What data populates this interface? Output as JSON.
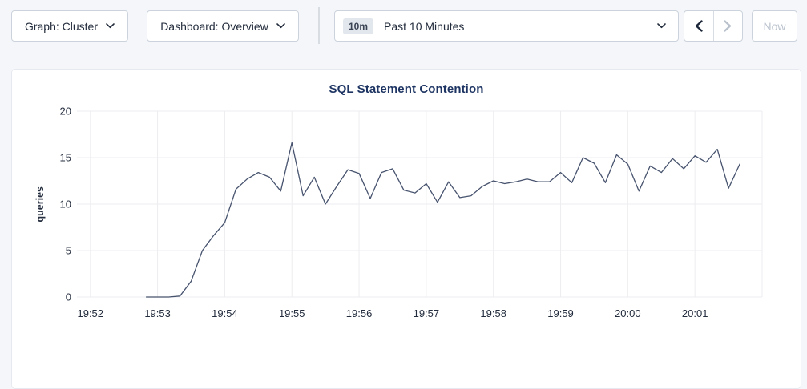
{
  "toolbar": {
    "graph_dropdown": {
      "label": "Graph: Cluster"
    },
    "dashboard_dropdown": {
      "label": "Dashboard: Overview"
    },
    "time_range": {
      "badge": "10m",
      "label": "Past 10 Minutes"
    },
    "now_button": {
      "label": "Now"
    },
    "icons": {
      "graph_dropdown": "chevron-down",
      "dashboard_dropdown": "chevron-down",
      "time_range": "chevron-down",
      "prev": "chevron-left",
      "next": "chevron-right"
    },
    "prev_enabled": true,
    "next_enabled": false,
    "now_enabled": false
  },
  "chart_data": {
    "type": "line",
    "title": "SQL Statement Contention",
    "ylabel": "queries",
    "ylim": [
      0,
      20
    ],
    "yticks": [
      0,
      5,
      10,
      15,
      20
    ],
    "xticks": [
      "19:52",
      "19:53",
      "19:54",
      "19:55",
      "19:56",
      "19:57",
      "19:58",
      "19:59",
      "20:00",
      "20:01"
    ],
    "xtick_interval_seconds": 60,
    "xlim_seconds_rel_to_first_tick": [
      -12,
      600
    ],
    "grid": true,
    "legend": "none",
    "line_color": "#47536e",
    "grid_color": "#ededf0",
    "tick_color": "#242d3d",
    "series": [
      {
        "name": "queries",
        "start_time": "19:52:50",
        "start_offset_seconds": 50,
        "interval_seconds": 10,
        "values": [
          0,
          0,
          0,
          0.1,
          1.7,
          5,
          6.6,
          8,
          11.6,
          12.7,
          13.4,
          12.9,
          11.4,
          16.6,
          10.9,
          12.9,
          10,
          11.9,
          13.7,
          13.3,
          10.6,
          13.4,
          13.8,
          11.5,
          11.2,
          12.2,
          10.2,
          12.4,
          10.7,
          10.9,
          11.9,
          12.5,
          12.2,
          12.4,
          12.7,
          12.4,
          12.4,
          13.4,
          12.3,
          15,
          14.4,
          12.3,
          15.3,
          14.3,
          11.4,
          14.1,
          13.4,
          14.9,
          13.8,
          15.2,
          14.5,
          15.9,
          11.7,
          14.3
        ]
      }
    ]
  },
  "colors": {
    "page_bg": "#f4f6f9",
    "card_bg": "#ffffff",
    "card_border": "#e6eaf0",
    "control_border": "#ccd3dc",
    "text_dark": "#242d3d",
    "disabled": "#b9c1cc",
    "title": "#1e3563",
    "badge_bg": "#e2e7ed"
  }
}
